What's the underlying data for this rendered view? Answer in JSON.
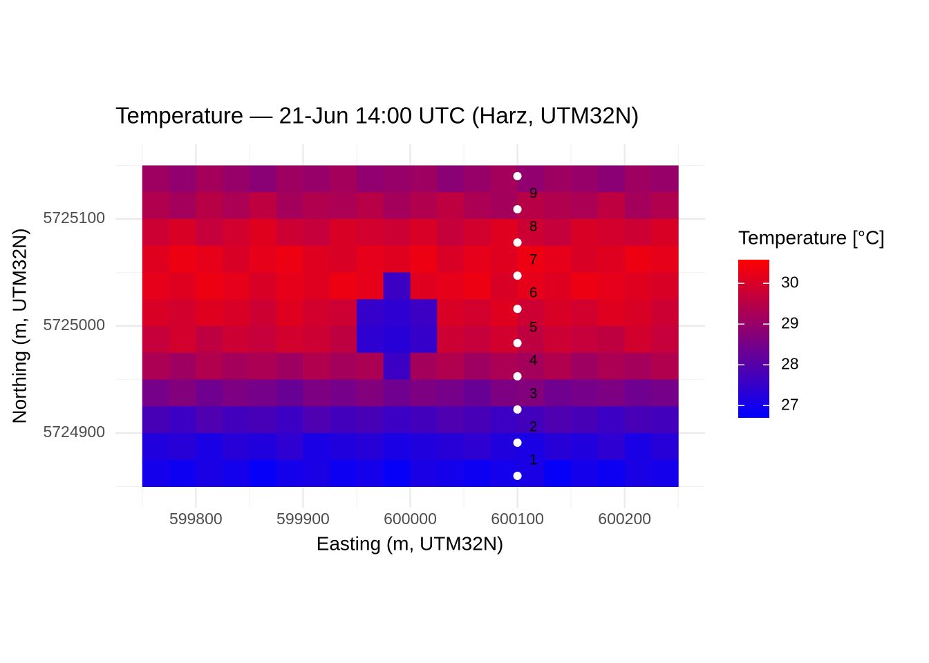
{
  "chart_data": {
    "type": "heatmap",
    "title": "Temperature — 21-Jun 14:00 UTC (Harz, UTM32N)",
    "x_label": "Easting (m, UTM32N)",
    "y_label": "Northing (m, UTM32N)",
    "legend_title": "Temperature [°C]",
    "xlim": [
      599725,
      600275
    ],
    "ylim": [
      5724830,
      5725170
    ],
    "xticks": [
      599800,
      599900,
      600000,
      600100,
      600200
    ],
    "yticks": [
      5724900,
      5725000,
      5725100
    ],
    "grid": true,
    "colors": [
      "#0000ff",
      "#ff0000"
    ],
    "zlim": [
      26.7,
      30.58
    ],
    "legend_ticks": [
      27,
      28,
      29,
      30
    ],
    "x": [
      599762.5,
      599787.5,
      599812.5,
      599837.5,
      599862.5,
      599887.5,
      599912.5,
      599937.5,
      599962.5,
      599987.5,
      600012.5,
      600037.5,
      600062.5,
      600087.5,
      600112.5,
      600137.5,
      600162.5,
      600187.5,
      600212.5,
      600237.5
    ],
    "y": [
      5725137.5,
      5725112.5,
      5725087.5,
      5725062.5,
      5725037.5,
      5725012.5,
      5724987.5,
      5724962.5,
      5724937.5,
      5724912.5,
      5724887.5,
      5724862.5
    ],
    "values": [
      [
        29.1,
        28.9,
        29.2,
        29.0,
        28.8,
        29.1,
        29.0,
        29.2,
        28.9,
        29.0,
        29.1,
        28.8,
        29.0,
        29.2,
        28.9,
        29.1,
        29.0,
        28.8,
        29.1,
        29.0
      ],
      [
        29.4,
        29.2,
        29.5,
        29.3,
        29.6,
        29.2,
        29.4,
        29.3,
        29.5,
        29.2,
        29.4,
        29.6,
        29.3,
        29.2,
        29.5,
        29.4,
        29.3,
        29.6,
        29.2,
        29.4
      ],
      [
        29.8,
        30.0,
        29.7,
        29.9,
        30.1,
        29.8,
        29.7,
        30.0,
        29.9,
        29.8,
        30.0,
        29.7,
        29.9,
        30.1,
        29.8,
        29.7,
        30.0,
        29.9,
        29.8,
        30.0
      ],
      [
        30.1,
        30.3,
        30.2,
        30.0,
        30.2,
        30.3,
        30.1,
        30.0,
        30.2,
        30.1,
        30.3,
        30.0,
        30.2,
        30.1,
        30.3,
        30.2,
        30.0,
        30.1,
        30.3,
        30.2
      ],
      [
        30.2,
        30.1,
        30.3,
        30.2,
        30.0,
        30.2,
        30.1,
        30.3,
        30.2,
        27.6,
        30.1,
        30.2,
        30.3,
        30.0,
        30.2,
        30.1,
        30.3,
        30.2,
        30.1,
        30.0
      ],
      [
        30.0,
        29.9,
        30.1,
        30.0,
        29.8,
        30.1,
        29.9,
        29.8,
        27.5,
        27.4,
        27.6,
        30.0,
        29.9,
        30.1,
        29.8,
        30.0,
        29.9,
        30.1,
        30.0,
        29.8
      ],
      [
        29.7,
        29.9,
        29.6,
        29.8,
        29.7,
        29.9,
        29.8,
        29.6,
        27.4,
        27.3,
        27.5,
        29.8,
        29.7,
        29.9,
        29.6,
        29.8,
        29.7,
        29.6,
        29.9,
        29.7
      ],
      [
        29.3,
        29.1,
        29.4,
        29.2,
        29.3,
        29.1,
        29.4,
        29.2,
        29.3,
        27.6,
        29.2,
        29.4,
        29.1,
        29.3,
        29.2,
        29.4,
        29.1,
        29.3,
        29.2,
        29.4
      ],
      [
        28.5,
        28.7,
        28.4,
        28.6,
        28.5,
        28.3,
        28.6,
        28.5,
        28.7,
        28.4,
        28.6,
        28.5,
        28.3,
        28.6,
        28.7,
        28.4,
        28.5,
        28.6,
        28.4,
        28.5
      ],
      [
        27.8,
        27.6,
        27.9,
        27.7,
        27.8,
        27.6,
        27.9,
        27.7,
        27.8,
        27.6,
        27.7,
        27.9,
        27.8,
        27.6,
        27.7,
        27.9,
        27.8,
        27.6,
        27.8,
        27.7
      ],
      [
        27.2,
        27.3,
        27.1,
        27.3,
        27.2,
        27.4,
        27.1,
        27.2,
        27.3,
        27.1,
        27.2,
        27.3,
        27.4,
        27.2,
        27.1,
        27.3,
        27.2,
        27.4,
        27.1,
        27.3
      ],
      [
        27.0,
        26.9,
        27.1,
        27.0,
        26.8,
        27.0,
        27.1,
        26.9,
        27.0,
        26.8,
        27.1,
        27.0,
        26.9,
        27.0,
        27.1,
        26.8,
        27.0,
        26.9,
        27.1,
        27.0
      ]
    ],
    "points": {
      "color": "#ffffff",
      "x": [
        600100,
        600100,
        600100,
        600100,
        600100,
        600100,
        600100,
        600100,
        600100,
        600100
      ],
      "y": [
        5724860,
        5724891,
        5724922,
        5724953,
        5724984,
        5725016,
        5725047,
        5725078,
        5725109,
        5725140
      ],
      "labels": [
        "1",
        "2",
        "3",
        "4",
        "5",
        "6",
        "7",
        "8",
        "9",
        null
      ]
    }
  }
}
